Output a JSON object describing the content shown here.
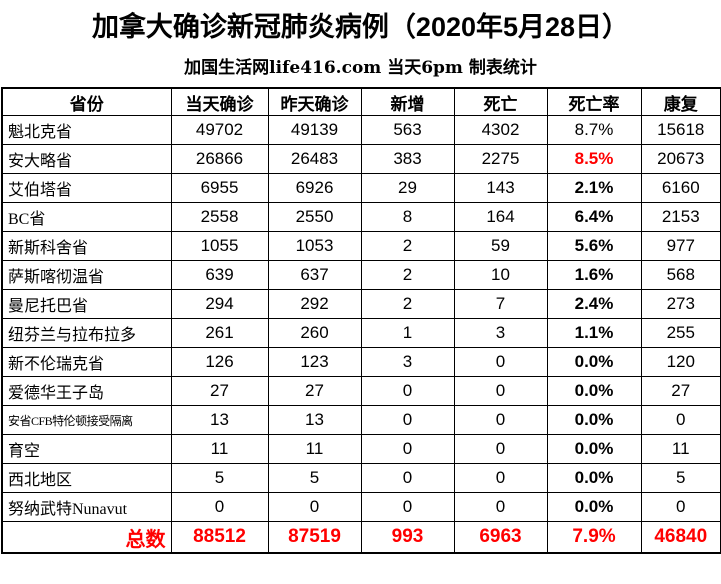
{
  "header": {
    "title": "加拿大确诊新冠肺炎病例（2020年5月28日）",
    "subtitle": "加国生活网life416.com 当天6pm 制表统计"
  },
  "colors": {
    "text": "#000000",
    "border": "#000000",
    "highlight_red": "#ff0000",
    "background": "#ffffff"
  },
  "chart_data": {
    "type": "table",
    "title": "加拿大确诊新冠肺炎病例（2020年5月28日）",
    "subtitle": "加国生活网life416.com 当天6pm 制表统计",
    "columns": [
      "省份",
      "当天确诊",
      "昨天确诊",
      "新增",
      "死亡",
      "死亡率",
      "康复"
    ],
    "rows": [
      {
        "cells": [
          "魁北克省",
          "49702",
          "49139",
          "563",
          "4302",
          "8.7%",
          "15618"
        ],
        "rate_weight": "normal"
      },
      {
        "cells": [
          "安大略省",
          "26866",
          "26483",
          "383",
          "2275",
          "8.5%",
          "20673"
        ],
        "rate_color": "red"
      },
      {
        "cells": [
          "艾伯塔省",
          "6955",
          "6926",
          "29",
          "143",
          "2.1%",
          "6160"
        ]
      },
      {
        "cells": [
          "BC省",
          "2558",
          "2550",
          "8",
          "164",
          "6.4%",
          "2153"
        ]
      },
      {
        "cells": [
          "新斯科舍省",
          "1055",
          "1053",
          "2",
          "59",
          "5.6%",
          "977"
        ]
      },
      {
        "cells": [
          "萨斯喀彻温省",
          "639",
          "637",
          "2",
          "10",
          "1.6%",
          "568"
        ]
      },
      {
        "cells": [
          "曼尼托巴省",
          "294",
          "292",
          "2",
          "7",
          "2.4%",
          "273"
        ]
      },
      {
        "cells": [
          "纽芬兰与拉布拉多",
          "261",
          "260",
          "1",
          "3",
          "1.1%",
          "255"
        ]
      },
      {
        "cells": [
          "新不伦瑞克省",
          "126",
          "123",
          "3",
          "0",
          "0.0%",
          "120"
        ]
      },
      {
        "cells": [
          "爱德华王子岛",
          "27",
          "27",
          "0",
          "0",
          "0.0%",
          "27"
        ]
      },
      {
        "cells": [
          "安省CFB特伦顿接受隔离",
          "13",
          "13",
          "0",
          "0",
          "0.0%",
          "0"
        ],
        "name_small": true
      },
      {
        "cells": [
          "育空",
          "11",
          "11",
          "0",
          "0",
          "0.0%",
          "11"
        ]
      },
      {
        "cells": [
          "西北地区",
          "5",
          "5",
          "0",
          "0",
          "0.0%",
          "5"
        ]
      },
      {
        "cells": [
          "努纳武特Nunavut",
          "0",
          "0",
          "0",
          "0",
          "0.0%",
          "0"
        ]
      },
      {
        "cells": [
          "总数",
          "88512",
          "87519",
          "993",
          "6963",
          "7.9%",
          "46840"
        ],
        "total": true
      }
    ]
  }
}
